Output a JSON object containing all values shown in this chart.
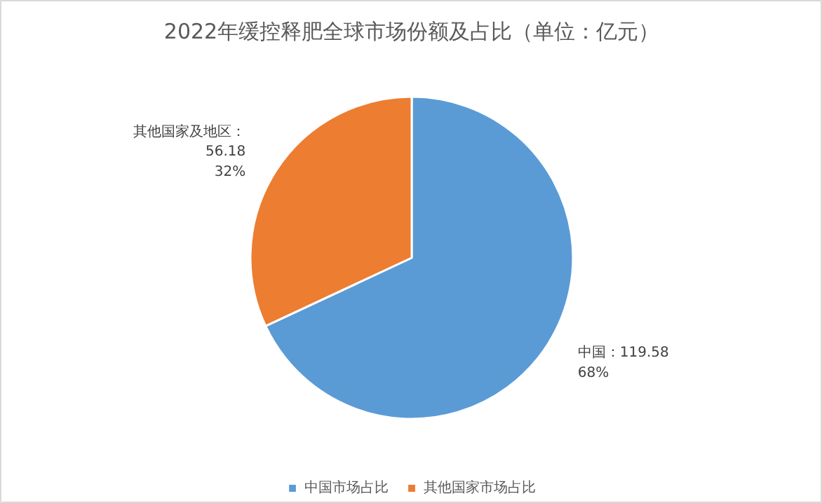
{
  "chart_data": {
    "type": "pie",
    "title": "2022年缓控释肥全球市场份额及占比（单位：亿元）",
    "categories": [
      "中国市场占比",
      "其他国家市场占比"
    ],
    "values": [
      119.58,
      56.18
    ],
    "colors": [
      "#5b9bd5",
      "#ed7d31"
    ],
    "value_labels": [
      "中国：119.58\n68%",
      "其他国家及地区：\n56.18\n32%"
    ],
    "legend": "bottom"
  }
}
